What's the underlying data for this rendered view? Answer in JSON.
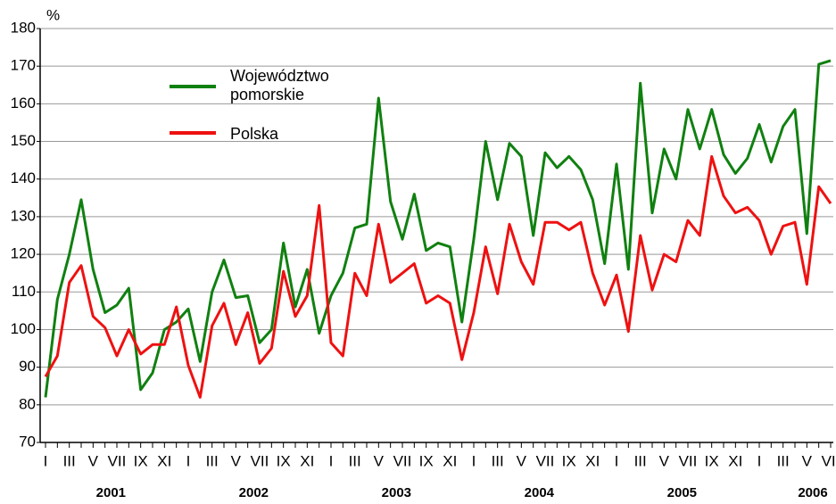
{
  "chart_data": {
    "type": "line",
    "y_label": "%",
    "categories": [
      "I",
      null,
      "III",
      null,
      "V",
      null,
      "VII",
      null,
      "IX",
      null,
      "XI",
      null,
      "I",
      null,
      "III",
      null,
      "V",
      null,
      "VII",
      null,
      "IX",
      null,
      "XI",
      null,
      "I",
      null,
      "III",
      null,
      "V",
      null,
      "VII",
      null,
      "IX",
      null,
      "XI",
      null,
      "I",
      null,
      "III",
      null,
      "V",
      null,
      "VII",
      null,
      "IX",
      null,
      "XI",
      null,
      "I",
      null,
      "III",
      null,
      "V",
      null,
      "VII",
      null,
      "IX",
      null,
      "XI",
      null,
      "I",
      null,
      "III",
      null,
      "V",
      null,
      "VII"
    ],
    "years": [
      "2001",
      "2002",
      "2003",
      "2004",
      "2005",
      "2006"
    ],
    "series": [
      {
        "name": "Województwo pomorskie",
        "color": "#108010",
        "values": [
          82,
          108,
          120,
          134.5,
          116,
          104.5,
          106.5,
          111,
          84,
          88.5,
          100,
          102,
          105.5,
          91.5,
          110,
          118.5,
          108.5,
          109,
          96.5,
          100,
          123,
          106,
          116,
          99,
          109,
          115,
          127,
          128,
          161.5,
          134,
          124,
          136,
          121,
          123,
          122,
          102,
          124,
          150,
          134.5,
          149.5,
          146,
          125,
          147,
          143,
          146,
          142.5,
          134.5,
          117.5,
          144,
          116,
          165.5,
          131,
          148,
          140,
          158.5,
          148,
          158.5,
          146.5,
          141.5,
          145.5,
          154.5,
          144.5,
          154,
          158.5,
          125.5,
          170.5,
          171.5
        ]
      },
      {
        "name": "Polska",
        "color": "#ee1111",
        "values": [
          87.5,
          93,
          112.5,
          117,
          103.5,
          100.5,
          93,
          100,
          93.5,
          96,
          96,
          106,
          90.5,
          82,
          101,
          107,
          96,
          104.5,
          91,
          95,
          115.5,
          103.5,
          109,
          133,
          96.5,
          93,
          115,
          109,
          128,
          112.5,
          115,
          117.5,
          107,
          109,
          107,
          92,
          104.5,
          122,
          109.5,
          128,
          118,
          112,
          128.5,
          128.5,
          126.5,
          128.5,
          115,
          106.5,
          114.5,
          99.5,
          125,
          110.5,
          120,
          118,
          129,
          125,
          146,
          135.5,
          131,
          132.5,
          129,
          120,
          127.5,
          128.5,
          112,
          138,
          133.5
        ]
      }
    ],
    "ylim": [
      70,
      180
    ],
    "yticks": [
      70,
      80,
      90,
      100,
      110,
      120,
      130,
      140,
      150,
      160,
      170,
      180
    ],
    "grid": true
  }
}
